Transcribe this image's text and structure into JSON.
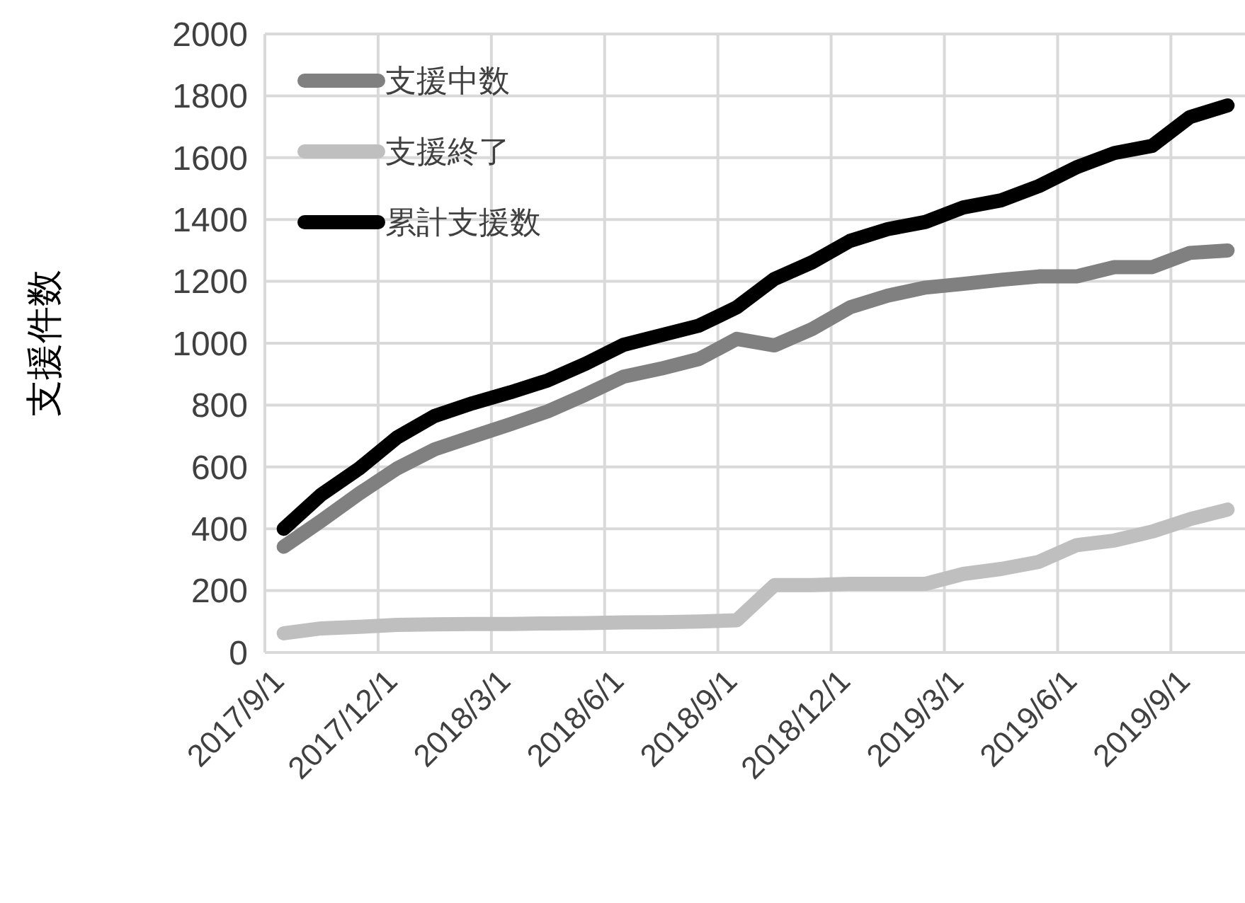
{
  "chart_data": {
    "type": "line",
    "ylabel": "支援件数",
    "categories": [
      "2017/9/1",
      null,
      null,
      "2017/12/1",
      null,
      null,
      "2018/3/1",
      null,
      null,
      "2018/6/1",
      null,
      null,
      "2018/9/1",
      null,
      null,
      "2018/12/1",
      null,
      null,
      "2019/3/1",
      null,
      null,
      "2019/6/1",
      null,
      null,
      "2019/9/1",
      null
    ],
    "series": [
      {
        "name": "支援中数",
        "color": "#808080",
        "values": [
          342,
          426,
          514,
          595,
          657,
          698,
          738,
          780,
          834,
          892,
          918,
          949,
          1014,
          993,
          1046,
          1116,
          1154,
          1180,
          1192,
          1205,
          1216,
          1216,
          1246,
          1246,
          1292,
          1300
        ]
      },
      {
        "name": "支援終了",
        "color": "#bfbfbf",
        "values": [
          62,
          78,
          83,
          89,
          91,
          92,
          92,
          94,
          95,
          97,
          98,
          100,
          104,
          218,
          218,
          222,
          222,
          222,
          254,
          270,
          293,
          347,
          362,
          391,
          431,
          462
        ]
      },
      {
        "name": "累計支援数",
        "color": "#000000",
        "values": [
          400,
          511,
          595,
          695,
          765,
          806,
          841,
          880,
          934,
          995,
          1026,
          1057,
          1116,
          1208,
          1262,
          1331,
          1369,
          1392,
          1439,
          1462,
          1508,
          1569,
          1615,
          1638,
          1731,
          1769
        ]
      }
    ],
    "ylim": [
      0,
      2000
    ],
    "yticks": [
      0,
      200,
      400,
      600,
      800,
      1000,
      1200,
      1400,
      1600,
      1800,
      2000
    ],
    "grid": true,
    "legend": "top left",
    "marker": "none",
    "line_style": "solid"
  }
}
